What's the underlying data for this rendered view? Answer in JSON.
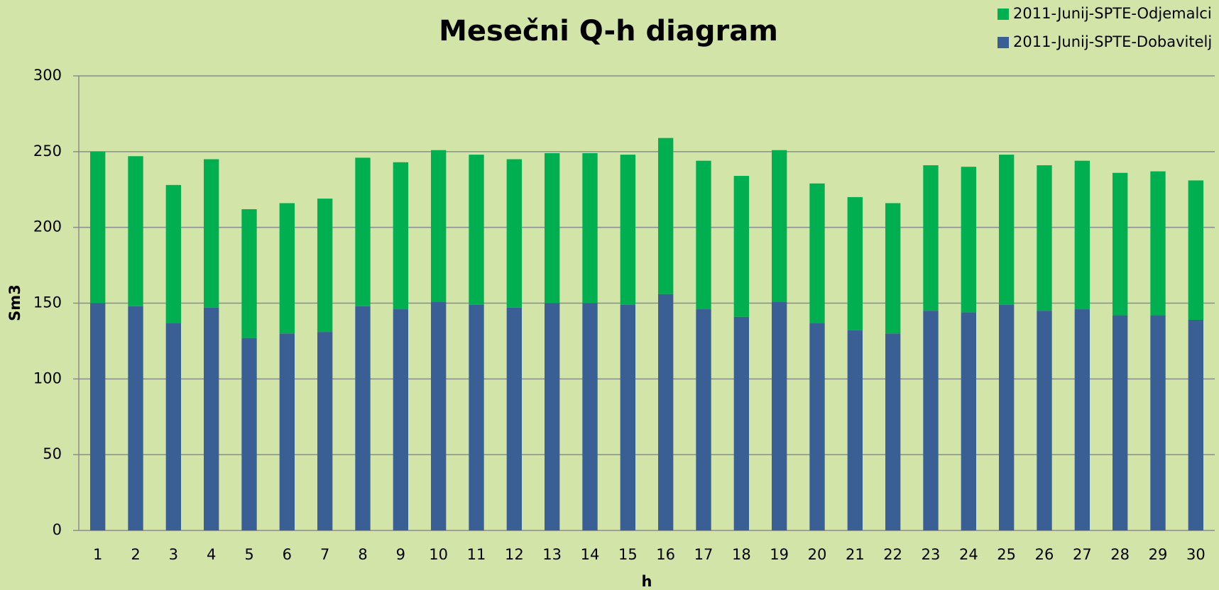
{
  "chart_data": {
    "type": "stacked_bar",
    "title": "Mesečni Q-h diagram",
    "x_label": "h",
    "y_label": "Sm3",
    "categories": [
      "1",
      "2",
      "3",
      "4",
      "5",
      "6",
      "7",
      "8",
      "9",
      "10",
      "11",
      "12",
      "13",
      "14",
      "15",
      "16",
      "17",
      "18",
      "19",
      "20",
      "21",
      "22",
      "23",
      "24",
      "25",
      "26",
      "27",
      "28",
      "29",
      "30"
    ],
    "series": [
      {
        "name": "2011-Junij-SPTE-Dobavitelj",
        "color": "#3a5f94",
        "values": [
          150,
          148,
          137,
          147,
          127,
          130,
          131,
          148,
          146,
          151,
          149,
          147,
          150,
          150,
          149,
          156,
          146,
          141,
          151,
          137,
          132,
          130,
          145,
          144,
          149,
          145,
          146,
          142,
          142,
          139
        ]
      },
      {
        "name": "2011-Junij-SPTE-Odjemalci",
        "color": "#00b050",
        "values": [
          100,
          99,
          91,
          98,
          85,
          86,
          88,
          98,
          97,
          100,
          99,
          98,
          99,
          99,
          99,
          103,
          98,
          93,
          100,
          92,
          88,
          86,
          96,
          96,
          99,
          96,
          98,
          94,
          95,
          92
        ]
      }
    ],
    "ylim": [
      0,
      300
    ],
    "yticks": [
      0,
      50,
      100,
      150,
      200,
      250,
      300
    ],
    "grid": true,
    "legend": "top-right"
  }
}
